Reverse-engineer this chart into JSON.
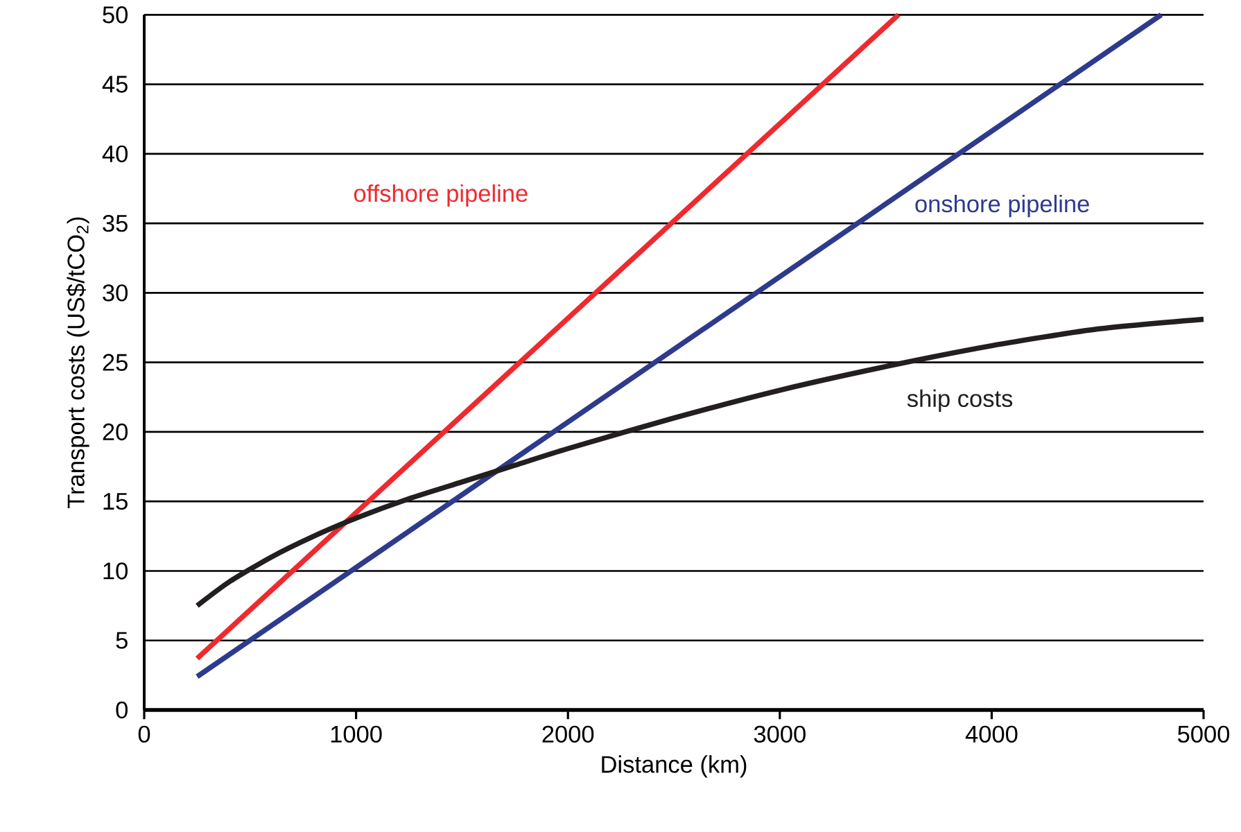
{
  "chart_data": {
    "type": "line",
    "xlabel": "Distance (km)",
    "ylabel": "Transport costs (US$/tCO$_{2}$)",
    "xlim": [
      0,
      5000
    ],
    "ylim": [
      0,
      50
    ],
    "xticks": [
      0,
      1000,
      2000,
      3000,
      4000,
      5000
    ],
    "yticks": [
      0,
      5,
      10,
      15,
      20,
      25,
      30,
      35,
      40,
      45,
      50
    ],
    "grid": "y",
    "legend": false,
    "marker": "none",
    "line_style": "solid",
    "series": [
      {
        "name": "offshore pipeline",
        "color": "#ee2a2f",
        "x": [
          250,
          3560
        ],
        "values": [
          3.7,
          50
        ]
      },
      {
        "name": "onshore pipeline",
        "color": "#2e3a8c",
        "x": [
          250,
          4800
        ],
        "values": [
          2.4,
          50
        ]
      },
      {
        "name": "ship costs",
        "color": "#231f20",
        "x": [
          250,
          400,
          600,
          800,
          1000,
          1250,
          1500,
          1750,
          2000,
          2500,
          3000,
          3500,
          4000,
          4500,
          5000
        ],
        "values": [
          7.5,
          9.2,
          11,
          12.5,
          13.8,
          15.2,
          16.4,
          17.6,
          18.8,
          21,
          23,
          24.7,
          26.2,
          27.4,
          28.1
        ]
      }
    ]
  }
}
